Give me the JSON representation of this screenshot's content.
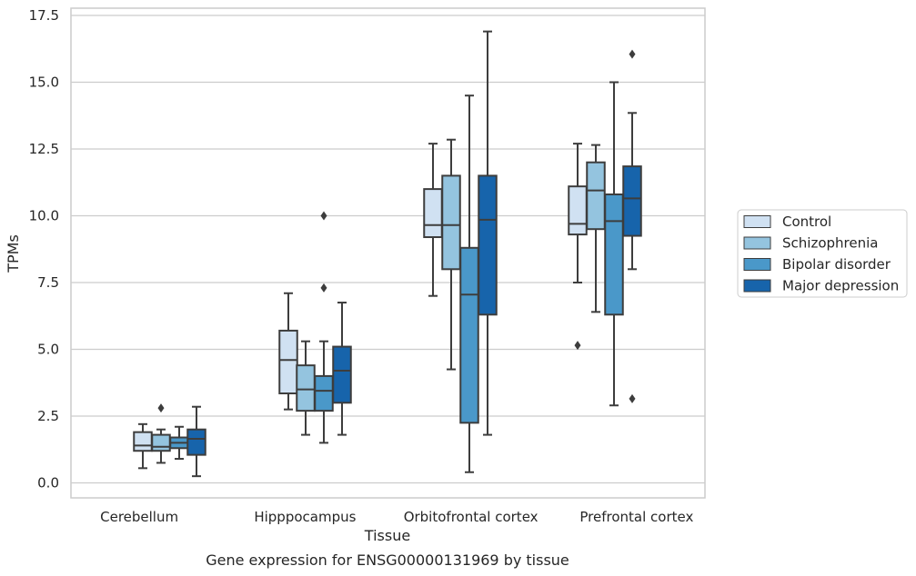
{
  "chart_data": {
    "type": "box",
    "title": "",
    "caption": "Gene expression for ENSG00000131969 by tissue",
    "xlabel": "Tissue",
    "ylabel": "TPMs",
    "ylim": [
      -0.5,
      17.75
    ],
    "yticks": [
      "0.0",
      "2.5",
      "5.0",
      "7.5",
      "10.0",
      "12.5",
      "15.0",
      "17.5"
    ],
    "grid": "horizontal",
    "legend_position": "right",
    "categories": [
      "Cerebellum",
      "Hipppocampus",
      "Orbitofrontal cortex",
      "Prefrontal cortex"
    ],
    "series": [
      {
        "name": "Control",
        "color": "#d0e1f2",
        "boxes": [
          {
            "whislo": 0.55,
            "q1": 1.2,
            "med": 1.4,
            "q3": 1.9,
            "whishi": 2.2,
            "fliers": []
          },
          {
            "whislo": 2.75,
            "q1": 3.35,
            "med": 4.6,
            "q3": 5.7,
            "whishi": 7.1,
            "fliers": []
          },
          {
            "whislo": 7.0,
            "q1": 9.2,
            "med": 9.65,
            "q3": 11.0,
            "whishi": 12.7,
            "fliers": []
          },
          {
            "whislo": 7.5,
            "q1": 9.3,
            "med": 9.7,
            "q3": 11.1,
            "whishi": 12.7,
            "fliers": [
              5.15
            ]
          }
        ]
      },
      {
        "name": "Schizophrenia",
        "color": "#94c4df",
        "boxes": [
          {
            "whislo": 0.75,
            "q1": 1.2,
            "med": 1.35,
            "q3": 1.8,
            "whishi": 2.0,
            "fliers": [
              2.8
            ]
          },
          {
            "whislo": 1.8,
            "q1": 2.7,
            "med": 3.5,
            "q3": 4.4,
            "whishi": 5.3,
            "fliers": []
          },
          {
            "whislo": 4.25,
            "q1": 8.0,
            "med": 9.65,
            "q3": 11.5,
            "whishi": 12.85,
            "fliers": []
          },
          {
            "whislo": 6.4,
            "q1": 9.5,
            "med": 10.95,
            "q3": 12.0,
            "whishi": 12.65,
            "fliers": []
          }
        ]
      },
      {
        "name": "Bipolar disorder",
        "color": "#4a98c9",
        "boxes": [
          {
            "whislo": 0.9,
            "q1": 1.3,
            "med": 1.5,
            "q3": 1.7,
            "whishi": 2.1,
            "fliers": []
          },
          {
            "whislo": 1.5,
            "q1": 2.7,
            "med": 3.45,
            "q3": 4.0,
            "whishi": 5.3,
            "fliers": [
              7.3,
              10.0
            ]
          },
          {
            "whislo": 0.4,
            "q1": 2.25,
            "med": 7.05,
            "q3": 8.8,
            "whishi": 14.5,
            "fliers": []
          },
          {
            "whislo": 2.9,
            "q1": 6.3,
            "med": 9.8,
            "q3": 10.8,
            "whishi": 15.0,
            "fliers": []
          }
        ]
      },
      {
        "name": "Major depression",
        "color": "#1764ab",
        "boxes": [
          {
            "whislo": 0.25,
            "q1": 1.05,
            "med": 1.65,
            "q3": 2.0,
            "whishi": 2.85,
            "fliers": []
          },
          {
            "whislo": 1.8,
            "q1": 3.0,
            "med": 4.2,
            "q3": 5.1,
            "whishi": 6.75,
            "fliers": []
          },
          {
            "whislo": 1.8,
            "q1": 6.3,
            "med": 9.85,
            "q3": 11.5,
            "whishi": 16.9,
            "fliers": []
          },
          {
            "whislo": 8.0,
            "q1": 9.25,
            "med": 10.65,
            "q3": 11.85,
            "whishi": 13.85,
            "fliers": [
              3.15,
              16.05
            ]
          }
        ]
      }
    ]
  }
}
